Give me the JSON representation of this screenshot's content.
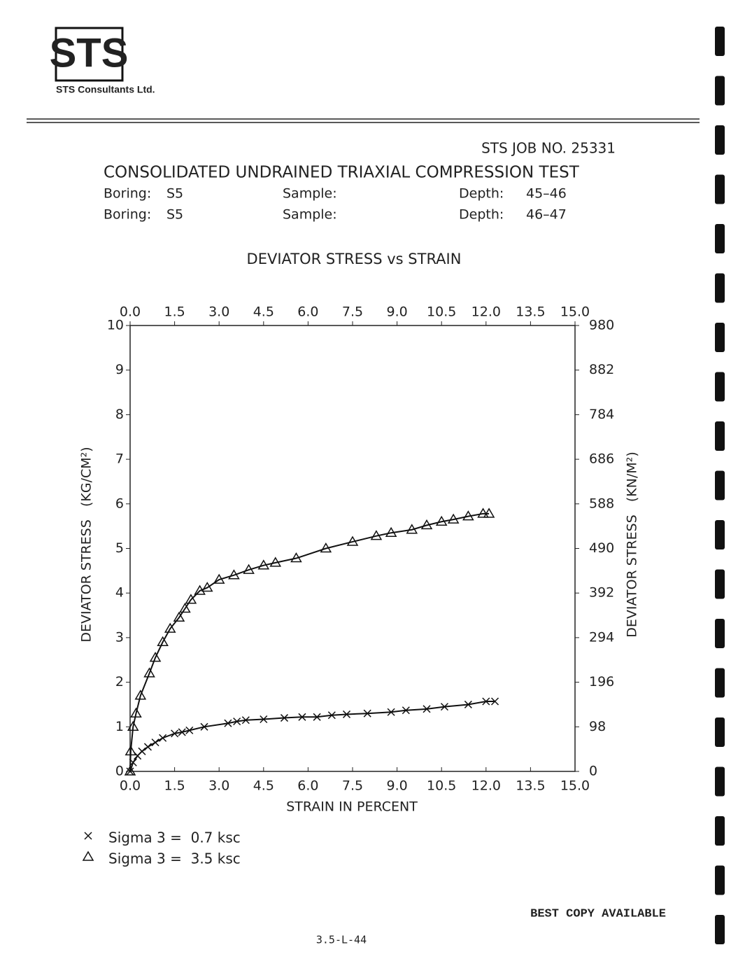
{
  "logo": "STS",
  "company": "STS Consultants Ltd.",
  "job": "STS JOB NO. 25331",
  "heading": "CONSOLIDATED UNDRAINED TRIAXIAL COMPRESSION TEST",
  "rows": [
    {
      "boring_label": "Boring:",
      "boring": "S5",
      "sample_label": "Sample:",
      "depth_label": "Depth:",
      "depth": "45–46"
    },
    {
      "boring_label": "Boring:",
      "boring": "S5",
      "sample_label": "Sample:",
      "depth_label": "Depth:",
      "depth": "46–47"
    }
  ],
  "chart_data": {
    "type": "line",
    "title": "DEVIATOR STRESS vs STRAIN",
    "x_label": "STRAIN IN PERCENT",
    "y_label": "DEVIATOR STRESS   (KG/CM²)",
    "y2_label": "DEVIATOR STRESS   (KN/M²)",
    "xlim": [
      0,
      15
    ],
    "xticks": [
      {
        "value": 0,
        "label": "0.0"
      },
      1.5,
      {
        "value": 3,
        "label": "3.0"
      },
      4.5,
      {
        "value": 6,
        "label": "6.0"
      },
      7.5,
      {
        "value": 9,
        "label": "9.0"
      },
      10.5,
      {
        "value": 12,
        "label": "12.0"
      },
      13.5,
      {
        "value": 15,
        "label": "15.0"
      }
    ],
    "ylim": [
      0,
      10
    ],
    "yticks": [
      0,
      1,
      2,
      3,
      4,
      5,
      6,
      7,
      8,
      9,
      10
    ],
    "y2lim": [
      0,
      980
    ],
    "y2ticks": [
      0,
      98,
      196,
      294,
      392,
      490,
      588,
      686,
      784,
      882,
      980
    ],
    "series": [
      {
        "name": "Sigma 3 =  0.7 ksc",
        "color": "#111111",
        "marker": "x",
        "x": [
          0,
          0.1,
          0.25,
          0.4,
          0.6,
          0.85,
          1.1,
          1.5,
          1.75,
          2.0,
          2.5,
          3.3,
          3.6,
          3.9,
          4.5,
          5.2,
          5.8,
          6.3,
          6.8,
          7.3,
          8.0,
          8.8,
          9.3,
          10.0,
          10.6,
          11.4,
          12.0,
          12.3
        ],
        "values": [
          0,
          0.2,
          0.35,
          0.45,
          0.55,
          0.65,
          0.75,
          0.85,
          0.88,
          0.92,
          1.0,
          1.08,
          1.12,
          1.15,
          1.17,
          1.2,
          1.22,
          1.22,
          1.26,
          1.28,
          1.3,
          1.33,
          1.37,
          1.4,
          1.45,
          1.5,
          1.57,
          1.57
        ]
      },
      {
        "name": "Sigma 3 =  3.5 ksc",
        "color": "#111111",
        "marker": "triangle",
        "x": [
          0,
          0.02,
          0.1,
          0.2,
          0.35,
          0.65,
          0.85,
          1.1,
          1.35,
          1.65,
          1.85,
          2.05,
          2.35,
          2.6,
          3.0,
          3.5,
          4.0,
          4.5,
          4.9,
          5.6,
          6.6,
          7.5,
          8.3,
          8.8,
          9.5,
          10.0,
          10.5,
          10.9,
          11.4,
          11.9,
          12.1
        ],
        "values": [
          0,
          0.45,
          1.0,
          1.3,
          1.7,
          2.2,
          2.55,
          2.9,
          3.2,
          3.45,
          3.65,
          3.85,
          4.05,
          4.12,
          4.3,
          4.4,
          4.52,
          4.62,
          4.68,
          4.78,
          5.0,
          5.15,
          5.28,
          5.35,
          5.42,
          5.52,
          5.6,
          5.65,
          5.72,
          5.78,
          5.78
        ]
      }
    ]
  },
  "footer_note": "BEST COPY AVAILABLE",
  "page_number": "3.5-L-44"
}
